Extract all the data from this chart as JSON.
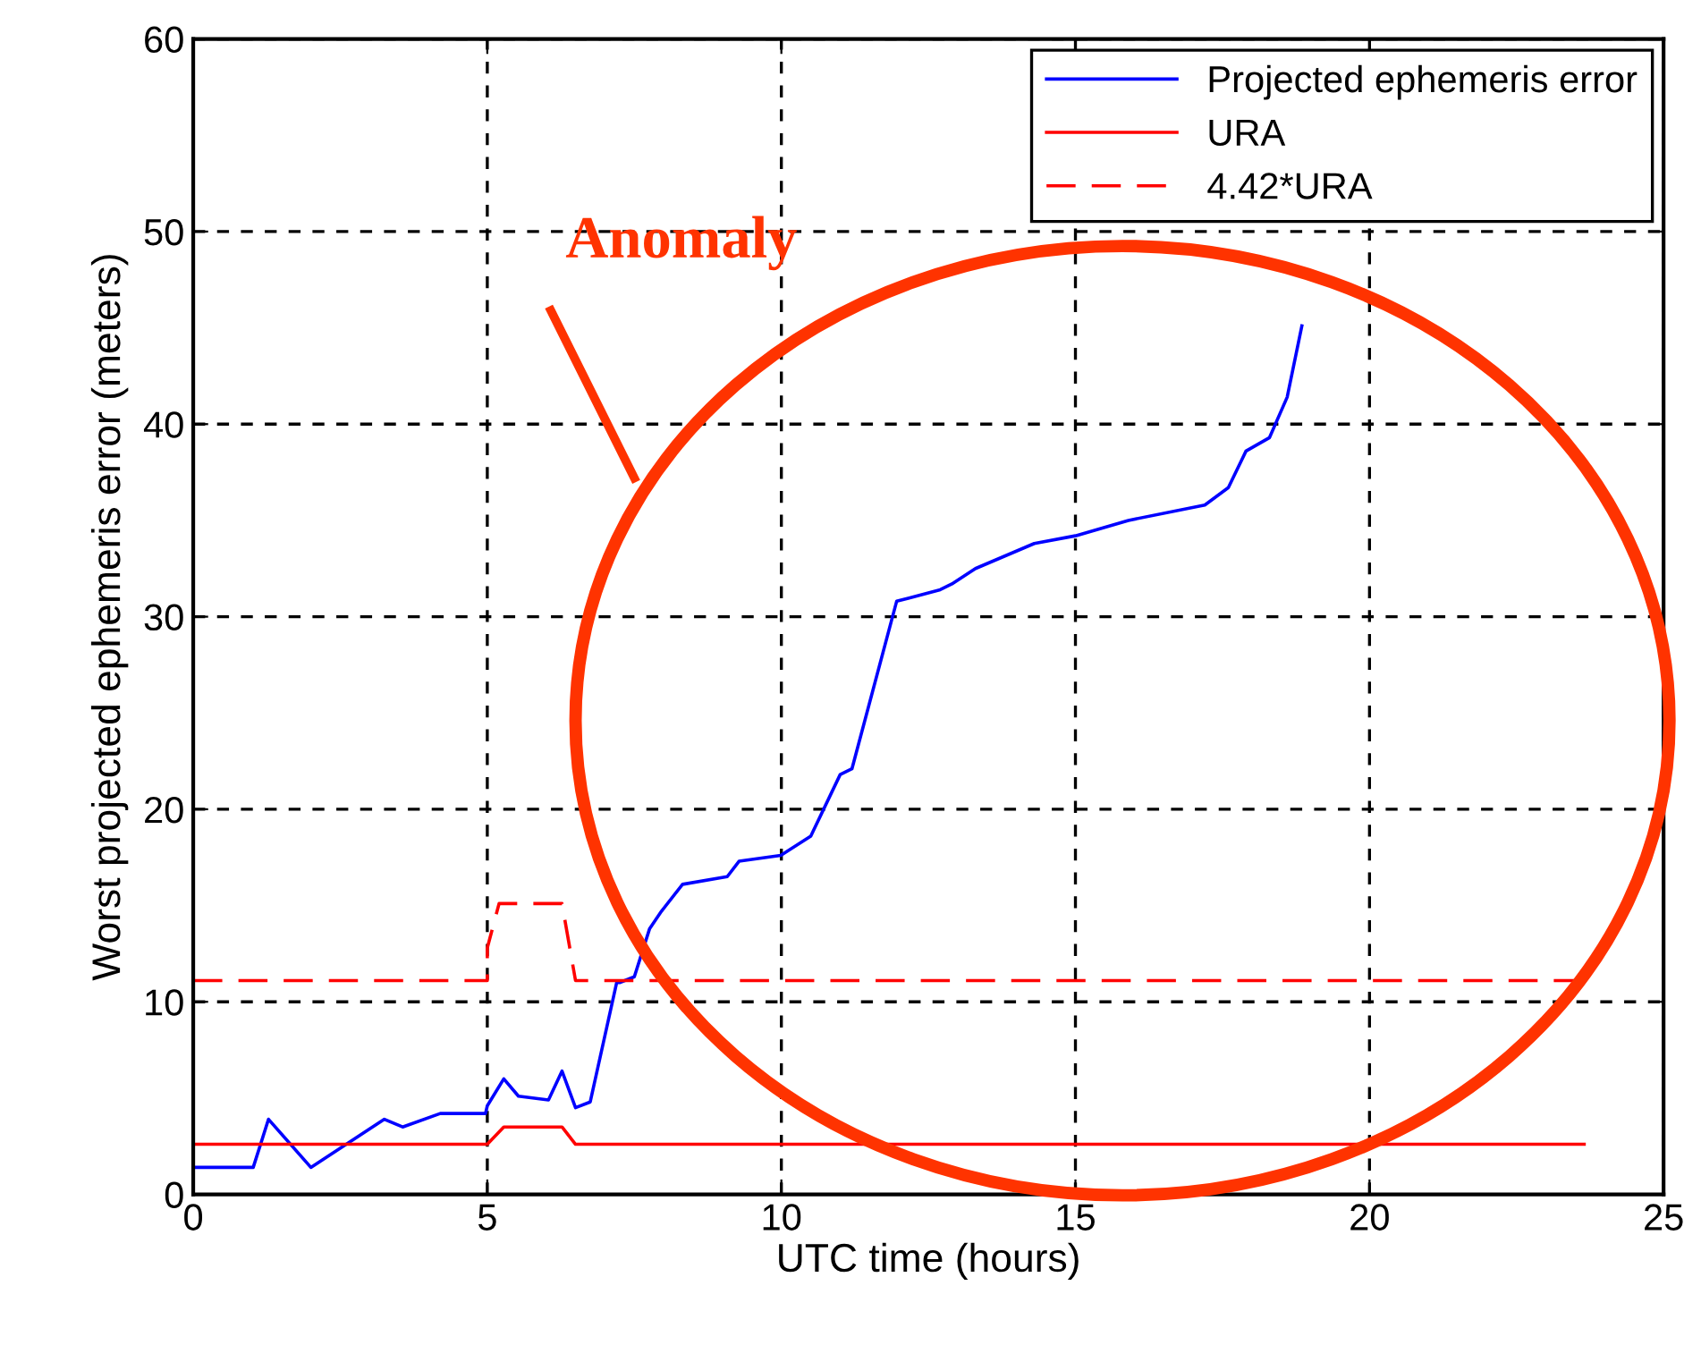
{
  "chart_data": {
    "type": "line",
    "xlabel": "UTC time (hours)",
    "ylabel": "Worst projected ephemeris error (meters)",
    "xlim": [
      0,
      25
    ],
    "xticks": [
      0,
      5,
      10,
      15,
      20,
      25
    ],
    "ylim": [
      0,
      60
    ],
    "yticks": [
      0,
      10,
      20,
      30,
      40,
      50,
      60
    ],
    "grid": true,
    "legend": "top right",
    "marker": "none",
    "annotations": [
      "Anomaly"
    ],
    "series": [
      {
        "name": "Projected ephemeris error",
        "color": "#0000ff",
        "line_style": "solid",
        "x": [
          0,
          1.02,
          1.28,
          2.0,
          3.25,
          3.56,
          4.2,
          4.97,
          5.0,
          5.28,
          5.53,
          6.04,
          6.27,
          6.5,
          6.75,
          7.2,
          7.25,
          7.5,
          7.76,
          7.96,
          8.32,
          9.08,
          9.28,
          9.99,
          10.5,
          11.0,
          11.2,
          11.96,
          12.7,
          12.9,
          13.3,
          14.3,
          15.0,
          15.9,
          17.2,
          17.6,
          17.9,
          18.3,
          18.6,
          18.85
        ],
        "values": [
          1.4,
          1.4,
          3.9,
          1.4,
          3.9,
          3.5,
          4.2,
          4.2,
          4.6,
          6.0,
          5.1,
          4.9,
          6.4,
          4.5,
          4.8,
          11.0,
          11.0,
          11.3,
          13.8,
          14.7,
          16.1,
          16.5,
          17.3,
          17.6,
          18.6,
          21.8,
          22.1,
          30.8,
          31.4,
          31.7,
          32.5,
          33.8,
          34.2,
          35.0,
          35.8,
          36.7,
          38.6,
          39.3,
          41.4,
          45.1
        ]
      },
      {
        "name": "URA",
        "color": "#ff0000",
        "line_style": "solid",
        "x": [
          0,
          5.0,
          5.28,
          6.27,
          6.5,
          23.65
        ],
        "values": [
          2.6,
          2.6,
          3.5,
          3.5,
          2.6,
          2.6
        ]
      },
      {
        "name": "4.42*URA",
        "color": "#ff0000",
        "line_style": "dashed",
        "x": [
          0,
          5.0,
          5.0,
          5.2,
          6.27,
          6.5,
          23.65
        ],
        "values": [
          11.1,
          11.1,
          12.8,
          15.1,
          15.1,
          11.1,
          11.1
        ]
      }
    ]
  }
}
